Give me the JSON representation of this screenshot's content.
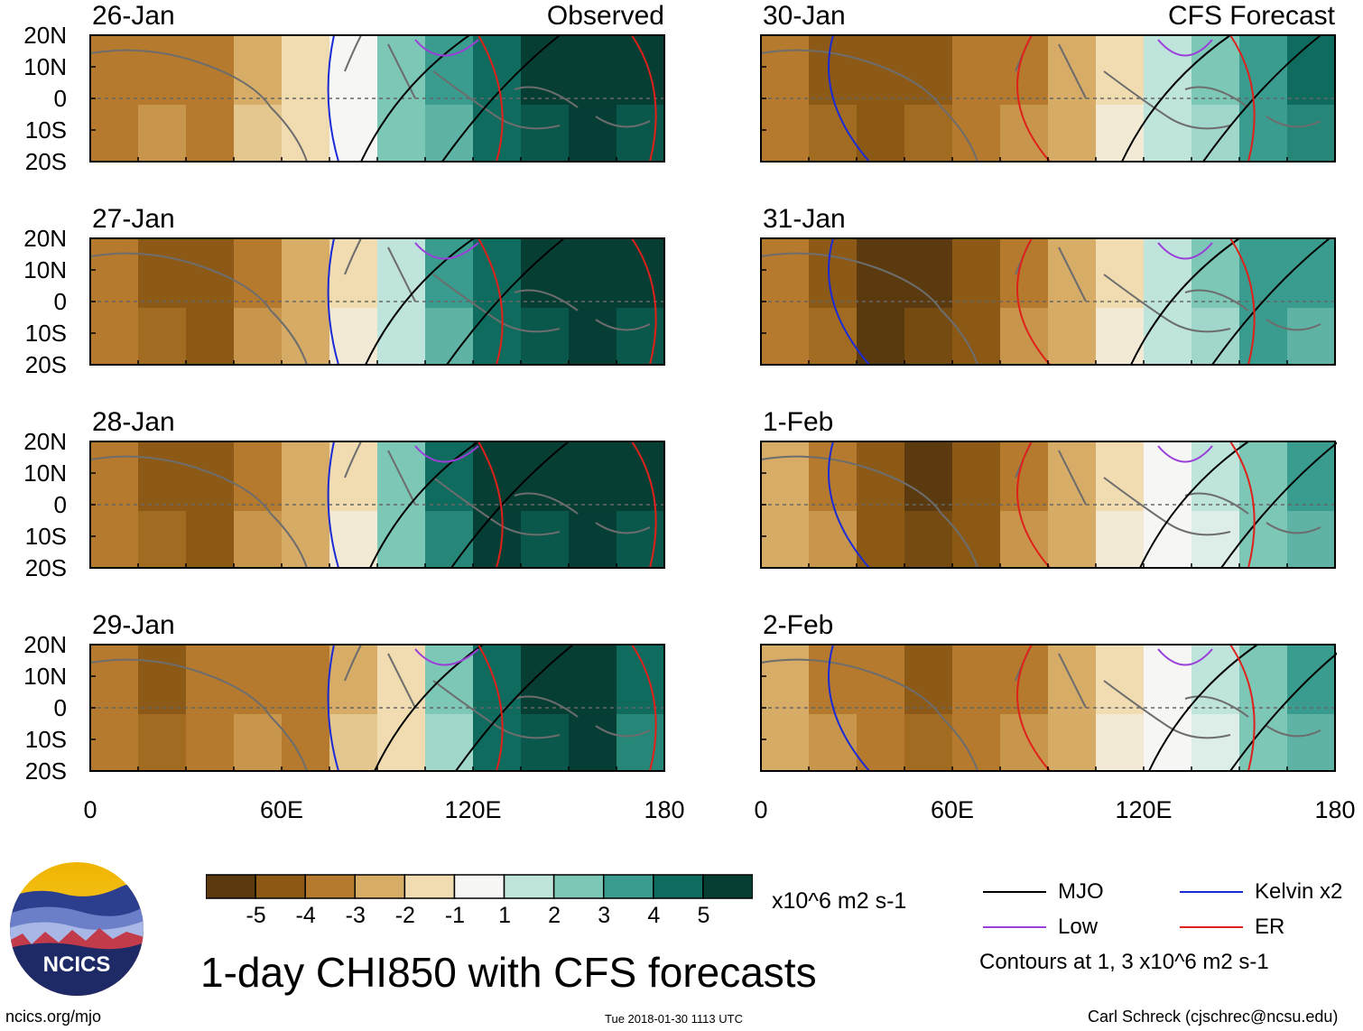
{
  "chart_data": {
    "type": "heatmap",
    "title": "1-day CHI850 with CFS forecasts",
    "units": "x10^6 m2 s-1",
    "colorbar": {
      "levels": [
        "-5",
        "-4",
        "-3",
        "-2",
        "-1",
        "1",
        "2",
        "3",
        "4",
        "5"
      ],
      "colors": [
        "#5a3a0e",
        "#8c5a16",
        "#b57a2e",
        "#d6ac66",
        "#f0dcb0",
        "#f6f6f4",
        "#bfe4dc",
        "#7cc7b6",
        "#3a9c8e",
        "#0f6b5e",
        "#063e34"
      ]
    },
    "x_ticks": [
      "0",
      "60E",
      "120E",
      "180"
    ],
    "y_ticks": [
      "20N",
      "10N",
      "0",
      "10S",
      "20S"
    ],
    "xlim": [
      0,
      180
    ],
    "ylim": [
      -20,
      20
    ],
    "observed_label": "Observed",
    "forecast_label": "CFS Forecast",
    "panels": [
      {
        "date": "26-Jan",
        "source": "Observed",
        "field": [
          -3,
          -3,
          -3,
          -2,
          -1,
          0,
          2,
          3,
          4,
          5,
          5,
          5
        ]
      },
      {
        "date": "27-Jan",
        "source": "Observed",
        "field": [
          -3,
          -4,
          -4,
          -3,
          -2,
          -1,
          1,
          3,
          4,
          5,
          5,
          5
        ]
      },
      {
        "date": "28-Jan",
        "source": "Observed",
        "field": [
          -3,
          -4,
          -4,
          -3,
          -2,
          -1,
          2,
          4,
          5,
          5,
          5,
          5
        ]
      },
      {
        "date": "29-Jan",
        "source": "Observed",
        "field": [
          -3,
          -4,
          -3,
          -3,
          -3,
          -2,
          -1,
          2,
          4,
          5,
          5,
          4
        ]
      },
      {
        "date": "30-Jan",
        "source": "CFS Forecast",
        "field": [
          -3,
          -4,
          -4,
          -4,
          -3,
          -3,
          -2,
          -1,
          1,
          2,
          3,
          4
        ]
      },
      {
        "date": "31-Jan",
        "source": "CFS Forecast",
        "field": [
          -3,
          -4,
          -5,
          -5,
          -4,
          -3,
          -2,
          -1,
          1,
          2,
          3,
          3
        ]
      },
      {
        "date": "1-Feb",
        "source": "CFS Forecast",
        "field": [
          -2,
          -3,
          -4,
          -5,
          -4,
          -3,
          -2,
          -1,
          0,
          1,
          2,
          3
        ]
      },
      {
        "date": "2-Feb",
        "source": "CFS Forecast",
        "field": [
          -2,
          -3,
          -3,
          -4,
          -3,
          -3,
          -2,
          -1,
          0,
          1,
          2,
          3
        ]
      }
    ]
  },
  "legend": {
    "items": [
      {
        "label": "MJO",
        "color": "#000000"
      },
      {
        "label": "Kelvin x2",
        "color": "#1a2bd6"
      },
      {
        "label": "Low",
        "color": "#9a3fd9"
      },
      {
        "label": "ER",
        "color": "#e0201a"
      }
    ],
    "contours_note": "Contours at 1, 3 x10^6 m2 s-1"
  },
  "logo_text": "NCICS",
  "footer": {
    "left": "ncics.org/mjo",
    "center": "Tue 2018-01-30 1113 UTC",
    "right": "Carl Schreck (cjschrec@ncsu.edu)"
  }
}
